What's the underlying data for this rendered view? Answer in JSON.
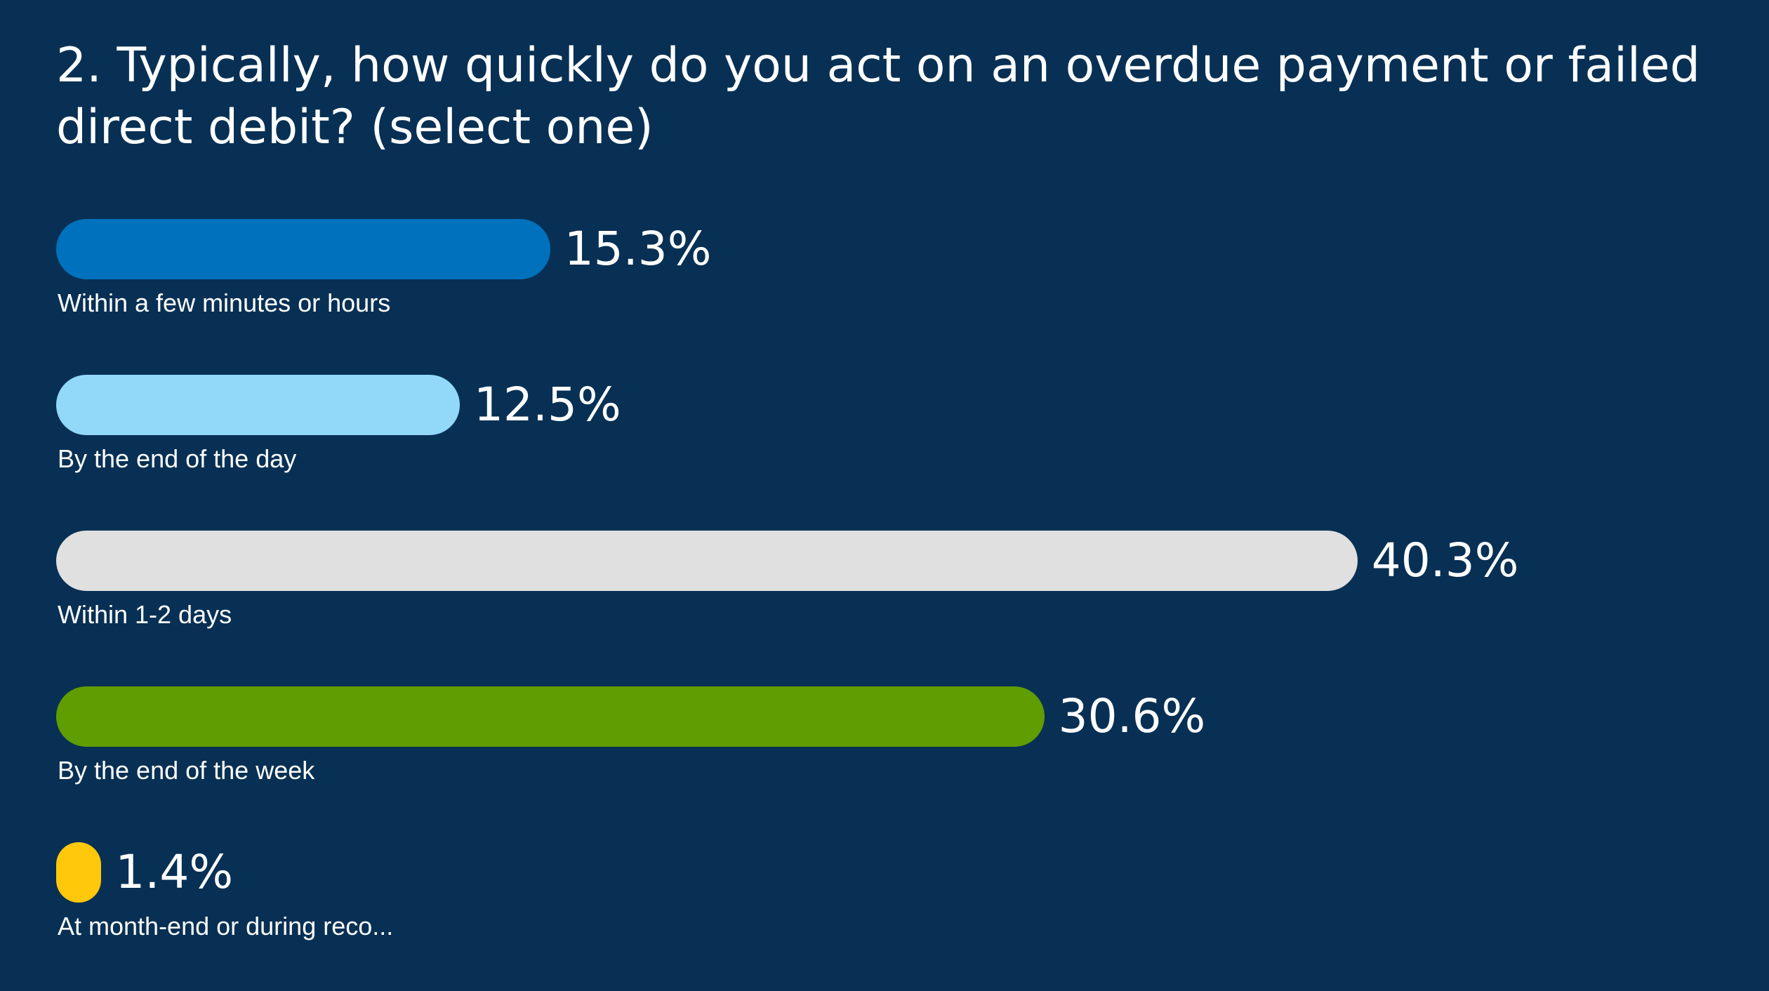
{
  "title": "2. Typically, how quickly do you act on an overdue payment or failed direct debit? (select one)",
  "chart_data": {
    "type": "bar",
    "orientation": "horizontal",
    "title": "2. Typically, how quickly do you act on an overdue payment or failed direct debit? (select one)",
    "categories": [
      "Within a few minutes or hours",
      "By the end of the day",
      "Within 1-2 days",
      "By the end of the week",
      "At month-end or during reco..."
    ],
    "values": [
      15.3,
      12.5,
      40.3,
      30.6,
      1.4
    ],
    "value_labels": [
      "15.3%",
      "12.5%",
      "40.3%",
      "30.6%",
      "1.4%"
    ],
    "colors": [
      "#0071BC",
      "#91D8F9",
      "#E0E0E0",
      "#5F9D00",
      "#FFC80A"
    ],
    "unit": "%",
    "xlim": [
      0,
      100
    ],
    "grid": false,
    "legend": "none"
  }
}
